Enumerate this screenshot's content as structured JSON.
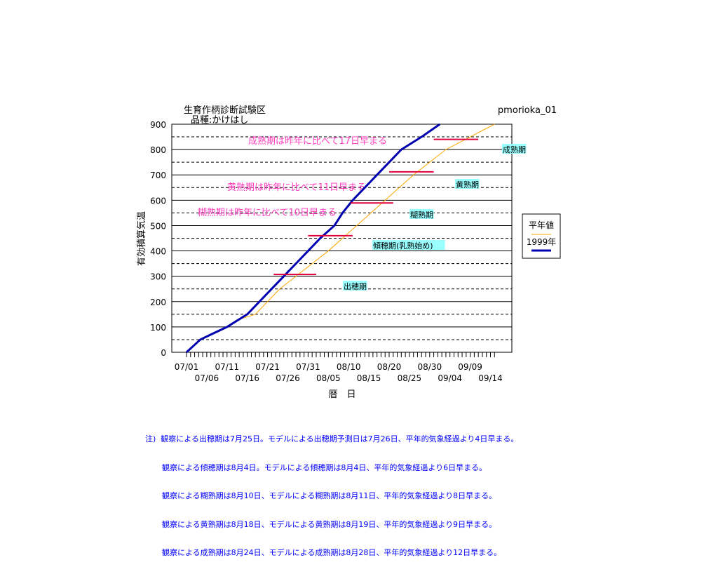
{
  "chart_data": {
    "type": "line",
    "title": "生育作柄診断試験区",
    "subtitle": "品種:かけはし",
    "code_label": "pmorioka_01",
    "xlabel": "暦　日",
    "ylabel": "有効積算気温",
    "ylim": [
      0,
      900
    ],
    "yticks": [
      0,
      100,
      200,
      300,
      400,
      500,
      600,
      700,
      800,
      900
    ],
    "grid": "solid every 100, dashed every 50",
    "x_start": "07/01",
    "xtick_labels_upper": [
      "07/01",
      "07/11",
      "07/21",
      "07/31",
      "08/10",
      "08/20",
      "08/30",
      "09/09"
    ],
    "xtick_labels_lower": [
      "07/06",
      "07/16",
      "07/26",
      "08/05",
      "08/15",
      "08/25",
      "09/04",
      "09/14"
    ],
    "legend": {
      "placement": "right",
      "entries": [
        "平年値",
        "1999年"
      ]
    },
    "series": [
      {
        "name": "平年値",
        "color": "#ffa500",
        "points": [
          [
            12,
            125
          ],
          [
            17,
            150
          ],
          [
            20,
            200
          ],
          [
            23,
            250
          ],
          [
            27,
            300
          ],
          [
            31,
            350
          ],
          [
            35,
            400
          ],
          [
            38.5,
            450
          ],
          [
            42,
            500
          ],
          [
            45.5,
            550
          ],
          [
            49,
            600
          ],
          [
            52.5,
            650
          ],
          [
            56,
            700
          ],
          [
            60,
            750
          ],
          [
            64,
            800
          ],
          [
            70,
            850
          ],
          [
            76,
            900
          ]
        ]
      },
      {
        "name": "1999年",
        "color": "#0000b0",
        "points": [
          [
            0,
            0
          ],
          [
            3.4,
            50
          ],
          [
            6,
            70
          ],
          [
            10,
            100
          ],
          [
            15,
            150
          ],
          [
            18,
            200
          ],
          [
            21,
            250
          ],
          [
            24,
            300
          ],
          [
            27,
            350
          ],
          [
            30,
            400
          ],
          [
            33,
            450
          ],
          [
            36.5,
            500
          ],
          [
            38.5,
            550
          ],
          [
            41,
            600
          ],
          [
            44,
            650
          ],
          [
            47,
            700
          ],
          [
            50,
            750
          ],
          [
            53,
            800
          ],
          [
            58,
            850
          ],
          [
            62.5,
            900
          ]
        ]
      }
    ],
    "stage_bars": [
      {
        "stage": "出穂期",
        "value": 307,
        "from": 21.5,
        "to": 32
      },
      {
        "stage": "傾穂期",
        "value": 460,
        "from": 30,
        "to": 41
      },
      {
        "stage": "糊熟期",
        "value": 589,
        "from": 40.5,
        "to": 51
      },
      {
        "stage": "黄熟期",
        "value": 712,
        "from": 50,
        "to": 61
      },
      {
        "stage": "成熟期",
        "value": 840,
        "from": 61,
        "to": 72
      }
    ],
    "bar_color": "#e0003c",
    "stage_labels": [
      "出穂期",
      "傾穂期(乳熟始め)",
      "糊熟期",
      "黄熟期",
      "成熟期"
    ],
    "stage_label_bg": "#99ffff",
    "annotations": [
      "成熟期は昨年に比べて17日早まる",
      "黄熟期は昨年に比べて11日早まる",
      "糊熟期は昨年に比べて10日早まる"
    ],
    "annotation_color": "#ff40c0"
  },
  "notes": {
    "prefix": "注)",
    "lines": [
      "観察による出穂期は7月25日。モデルによる出穂期予測日は7月26日、平年的気象経過より4日早まる。",
      "観察による傾穂期は8月4日。モデルによる傾穂期は8月4日、平年的気象経過より6日早まる。",
      "観察による糊熟期は8月10日、モデルによる糊熟期は8月11日、平年的気象経過より8日早まる。",
      "観察による黄熟期は8月18日、モデルによる黄熟期は8月19日、平年的気象経過より9日早まる。",
      "観察による成熟期は8月24日、モデルによる成熟期は8月28日、平年的気象経過より12日早まる。"
    ]
  }
}
